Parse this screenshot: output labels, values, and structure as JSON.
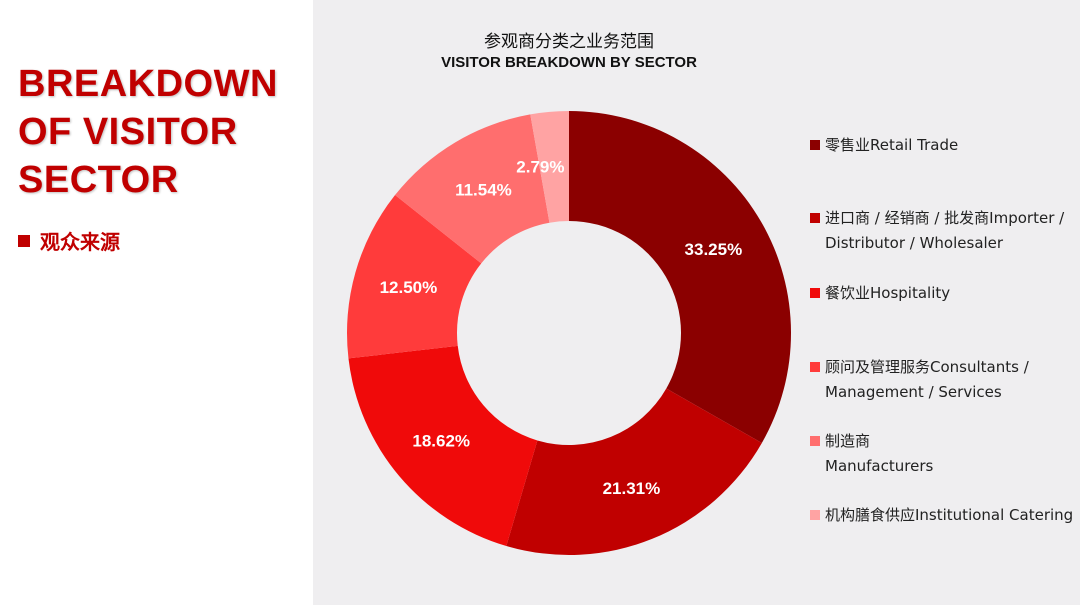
{
  "left": {
    "title_lines": [
      "BREAKDOWN",
      "OF VISITOR",
      "SECTOR"
    ],
    "subtitle": "观众来源"
  },
  "chart_data": {
    "type": "pie",
    "donut": true,
    "title": "参观商分类之业务范围",
    "subtitle": "VISITOR BREAKDOWN BY SECTOR",
    "legend_position": "right",
    "categories": [
      {
        "cn": "零售业Retail Trade",
        "en": ""
      },
      {
        "cn": "进口商 / 经销商 / 批发商Importer /",
        "en": "Distributor / Wholesaler"
      },
      {
        "cn": "餐饮业Hospitality",
        "en": ""
      },
      {
        "cn": "顾问及管理服务Consultants /",
        "en": "Management / Services"
      },
      {
        "cn": "制造商",
        "en": "Manufacturers"
      },
      {
        "cn": "机构膳食供应Institutional Catering",
        "en": ""
      }
    ],
    "values": [
      33.25,
      21.31,
      18.62,
      12.5,
      11.54,
      2.79
    ],
    "labels": [
      "33.25%",
      "21.31%",
      "18.62%",
      "12.50%",
      "11.54%",
      "2.79%"
    ],
    "colors": [
      "#8b0000",
      "#c00000",
      "#f00a0a",
      "#ff3b3b",
      "#ff6e6e",
      "#ffa3a3"
    ]
  }
}
